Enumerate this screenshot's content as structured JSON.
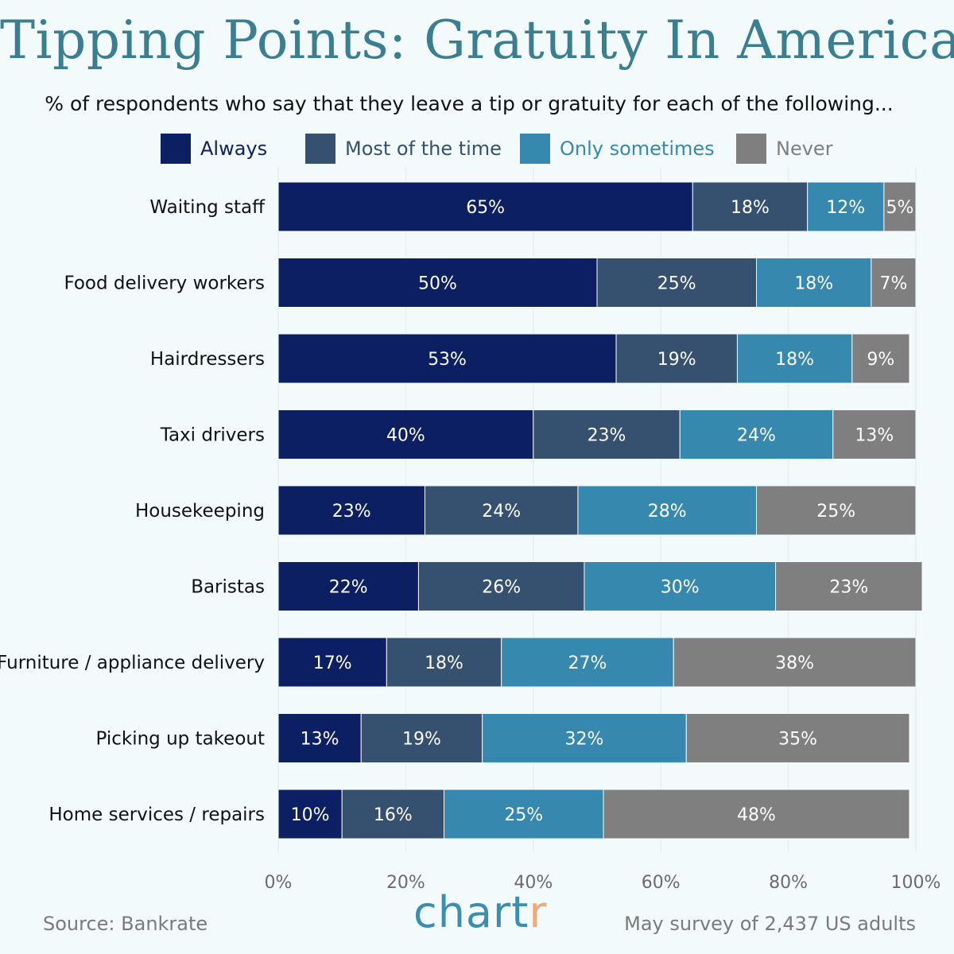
{
  "chart_data": {
    "type": "bar",
    "orientation": "horizontal",
    "stacked": true,
    "title": "Tipping Points: Gratuity In America",
    "subtitle": "% of respondents who say that they leave a tip or gratuity for each of the following...",
    "categories": [
      "Waiting staff",
      "Food delivery workers",
      "Hairdressers",
      "Taxi drivers",
      "Housekeeping",
      "Baristas",
      "Furniture / appliance delivery",
      "Picking up takeout",
      "Home services / repairs"
    ],
    "series": [
      {
        "name": "Always",
        "color": "#0c1f63",
        "values": [
          65,
          50,
          53,
          40,
          23,
          22,
          17,
          13,
          10
        ]
      },
      {
        "name": "Most of the time",
        "color": "#36506f",
        "values": [
          18,
          25,
          19,
          23,
          24,
          26,
          18,
          19,
          16
        ]
      },
      {
        "name": "Only sometimes",
        "color": "#3688ae",
        "values": [
          12,
          18,
          18,
          24,
          28,
          30,
          27,
          32,
          25
        ]
      },
      {
        "name": "Never",
        "color": "#7f7f7f",
        "values": [
          5,
          7,
          9,
          13,
          25,
          23,
          38,
          35,
          48
        ]
      }
    ],
    "xlim": [
      0,
      100
    ],
    "xticks": [
      "0%",
      "20%",
      "40%",
      "60%",
      "80%",
      "100%"
    ],
    "grid": "vertical",
    "legend": "top"
  },
  "footer": {
    "source": "Source: Bankrate",
    "note": "May survey of 2,437 US adults",
    "logo": "chartr"
  }
}
